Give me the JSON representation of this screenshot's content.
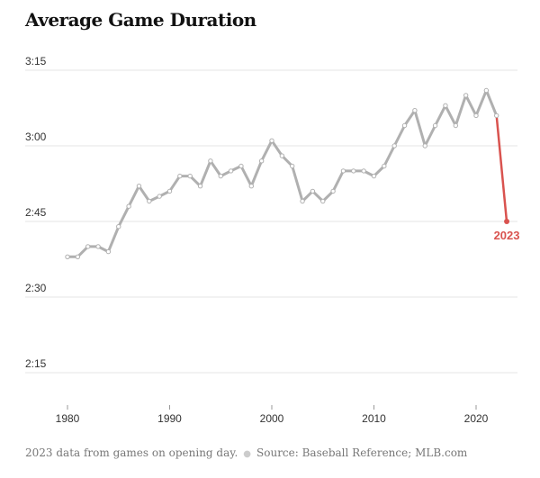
{
  "chart_data": {
    "type": "line",
    "title": "Average Game Duration",
    "xlabel": "",
    "ylabel": "",
    "xlim": [
      1980,
      2023
    ],
    "ylim": [
      2.1,
      3.3
    ],
    "x_ticks": [
      1980,
      1990,
      2000,
      2010,
      2020
    ],
    "y_ticks": [
      {
        "value": 2.25,
        "label": "2:15"
      },
      {
        "value": 2.5,
        "label": "2:30"
      },
      {
        "value": 2.75,
        "label": "2:45"
      },
      {
        "value": 3.0,
        "label": "3:00"
      },
      {
        "value": 3.25,
        "label": "3:15"
      }
    ],
    "grid": "horizontal",
    "series": [
      {
        "x": [
          1980,
          1981,
          1982,
          1983,
          1984,
          1985,
          1986,
          1987,
          1988,
          1989,
          1990,
          1991,
          1992,
          1993,
          1994,
          1995,
          1996,
          1997,
          1998,
          1999,
          2000,
          2001,
          2002,
          2003,
          2004,
          2005,
          2006,
          2007,
          2008,
          2009,
          2010,
          2011,
          2012,
          2013,
          2014,
          2015,
          2016,
          2017,
          2018,
          2019,
          2020,
          2021,
          2022
        ],
        "values": [
          2.633,
          2.633,
          2.667,
          2.667,
          2.65,
          2.733,
          2.8,
          2.867,
          2.817,
          2.833,
          2.85,
          2.9,
          2.9,
          2.867,
          2.95,
          2.9,
          2.917,
          2.933,
          2.867,
          2.95,
          3.017,
          2.967,
          2.933,
          2.817,
          2.85,
          2.817,
          2.85,
          2.917,
          2.917,
          2.917,
          2.9,
          2.933,
          3.0,
          3.067,
          3.117,
          3.0,
          3.067,
          3.133,
          3.067,
          3.167,
          3.1,
          3.183,
          3.1
        ],
        "color": "#b0b0b0"
      },
      {
        "x": [
          2022,
          2023
        ],
        "values": [
          3.1,
          2.75
        ],
        "color": "#d9534f"
      }
    ],
    "annotation": {
      "x": 2023,
      "y": 2.75,
      "text": "2023",
      "color": "#d9534f"
    }
  },
  "footer": {
    "note": "2023 data from games on opening day.",
    "source": "Source: Baseball Reference; MLB.com"
  }
}
